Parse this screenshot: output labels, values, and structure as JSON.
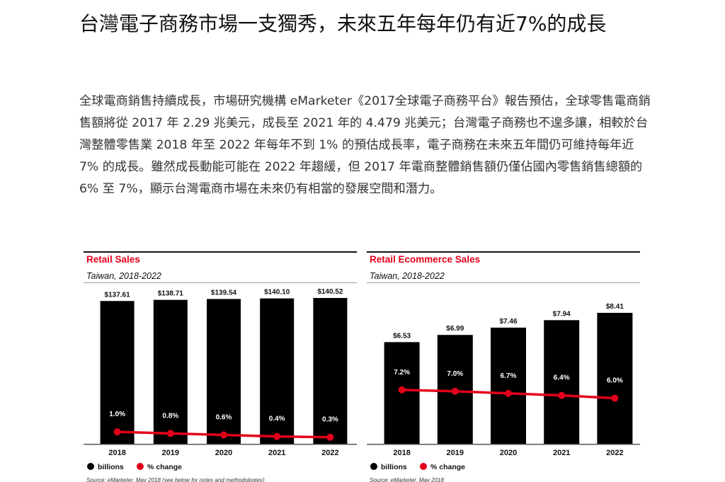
{
  "article": {
    "title": "台灣電子商務市場一支獨秀，未來五年每年仍有近7%的成長",
    "body": "全球電商銷售持續成長，市場研究機構 eMarketer《2017全球電子商務平台》報告預估，全球零售電商銷售額將從 2017 年 2.29 兆美元，成長至 2021 年的 4.479 兆美元；台灣電子商務也不遑多讓，相較於台灣整體零售業 2018 年至 2022 年每年不到 1% 的預估成長率，電子商務在未來五年間仍可維持每年近 7% 的成長。雖然成長動能可能在 2022 年趨緩，但 2017 年電商整體銷售額仍僅佔國內零售銷售總額的 6% 至 7%，顯示台灣電商市場在未來仍有相當的發展空間和潛力。"
  },
  "colors": {
    "accent": "#e2001a",
    "bar": "#000000"
  },
  "chart_data": [
    {
      "type": "bar",
      "title": "Retail Sales",
      "subtitle": "Taiwan, 2018-2022",
      "categories": [
        "2018",
        "2019",
        "2020",
        "2021",
        "2022"
      ],
      "series": [
        {
          "name": "billions",
          "values": [
            137.61,
            138.71,
            139.54,
            140.1,
            140.52
          ],
          "labels": [
            "$137.61",
            "$138.71",
            "$139.54",
            "$140.10",
            "$140.52"
          ]
        },
        {
          "name": "% change",
          "values": [
            1.0,
            0.8,
            0.6,
            0.4,
            0.3
          ],
          "labels": [
            "1.0%",
            "0.8%",
            "0.6%",
            "0.4%",
            "0.3%"
          ]
        }
      ],
      "ylim": [
        0,
        140.52
      ],
      "pct_ylim": [
        0,
        19
      ],
      "legend": "bottom-left",
      "source": "Source: eMarketer, May 2018 (see below for notes and methodologies)"
    },
    {
      "type": "bar",
      "title": "Retail Ecommerce Sales",
      "subtitle": "Taiwan, 2018-2022",
      "categories": [
        "2018",
        "2019",
        "2020",
        "2021",
        "2022"
      ],
      "series": [
        {
          "name": "billions",
          "values": [
            6.53,
            6.99,
            7.46,
            7.94,
            8.41
          ],
          "labels": [
            "$6.53",
            "$6.99",
            "$7.46",
            "$7.94",
            "$8.41"
          ]
        },
        {
          "name": "% change",
          "values": [
            7.2,
            7.0,
            6.7,
            6.4,
            6.0
          ],
          "labels": [
            "7.2%",
            "7.0%",
            "6.7%",
            "6.4%",
            "6.0%"
          ]
        }
      ],
      "ylim": [
        0,
        8.41
      ],
      "pct_ylim": [
        0,
        19
      ],
      "legend": "bottom-left",
      "source": "Source: eMarketer, May 2018"
    }
  ]
}
